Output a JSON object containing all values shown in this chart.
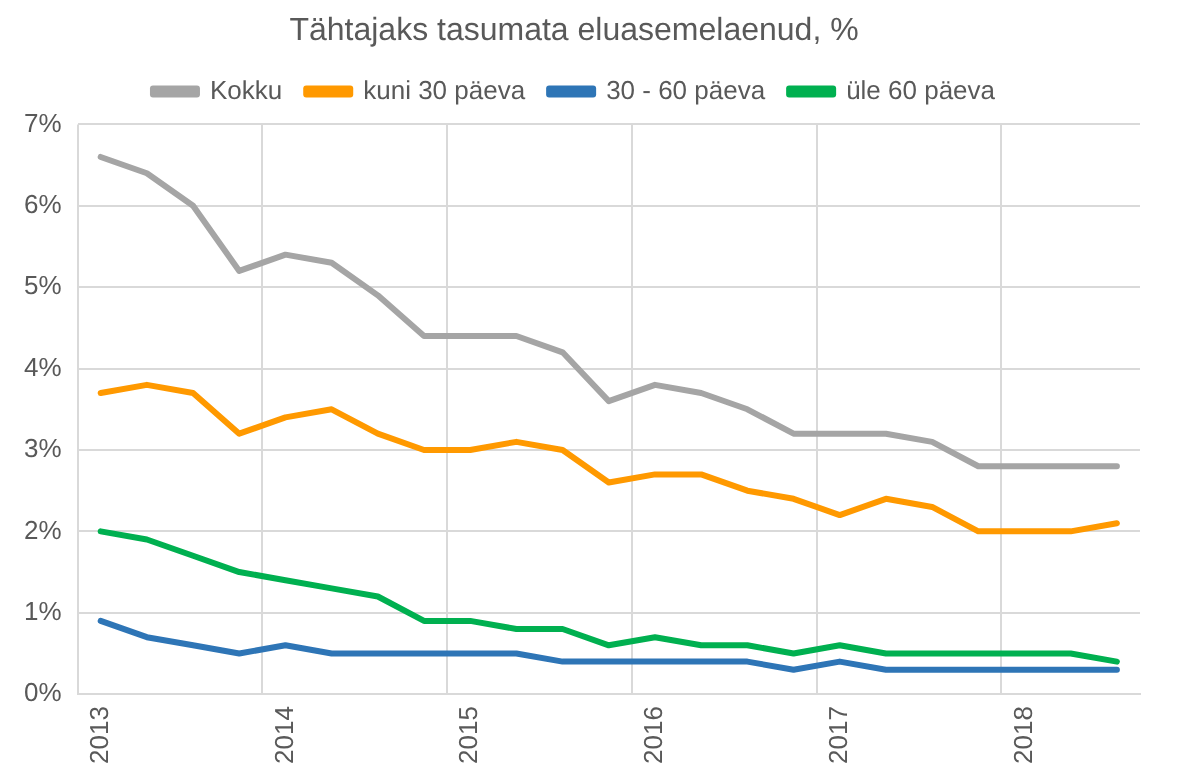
{
  "chart_data": {
    "type": "line",
    "title": "Tähtajaks tasumata eluasemelaenud, %",
    "categories": [
      "2013",
      null,
      null,
      null,
      "2014",
      null,
      null,
      null,
      "2015",
      null,
      null,
      null,
      "2016",
      null,
      null,
      null,
      "2017",
      null,
      null,
      null,
      "2018",
      null,
      null
    ],
    "series": [
      {
        "name": "Kokku",
        "color": "#a5a5a5",
        "values": [
          6.6,
          6.4,
          6.0,
          5.2,
          5.4,
          5.3,
          4.9,
          4.4,
          4.4,
          4.4,
          4.2,
          3.6,
          3.8,
          3.7,
          3.5,
          3.2,
          3.2,
          3.2,
          3.1,
          2.8,
          2.8,
          2.8,
          2.8
        ]
      },
      {
        "name": "kuni 30 päeva",
        "color": "#ff9900",
        "values": [
          3.7,
          3.8,
          3.7,
          3.2,
          3.4,
          3.5,
          3.2,
          3.0,
          3.0,
          3.1,
          3.0,
          2.6,
          2.7,
          2.7,
          2.5,
          2.4,
          2.2,
          2.4,
          2.3,
          2.0,
          2.0,
          2.0,
          2.1
        ]
      },
      {
        "name": "30 - 60 päeva",
        "color": "#2e75b6",
        "values": [
          0.9,
          0.7,
          0.6,
          0.5,
          0.6,
          0.5,
          0.5,
          0.5,
          0.5,
          0.5,
          0.4,
          0.4,
          0.4,
          0.4,
          0.4,
          0.3,
          0.4,
          0.3,
          0.3,
          0.3,
          0.3,
          0.3,
          0.3
        ]
      },
      {
        "name": "üle 60 päeva",
        "color": "#00b050",
        "values": [
          2.0,
          1.9,
          1.7,
          1.5,
          1.4,
          1.3,
          1.2,
          0.9,
          0.9,
          0.8,
          0.8,
          0.6,
          0.7,
          0.6,
          0.6,
          0.5,
          0.6,
          0.5,
          0.5,
          0.5,
          0.5,
          0.5,
          0.4
        ]
      }
    ],
    "ylim": [
      0,
      7
    ],
    "yticks": [
      {
        "value": 0,
        "label": "0%"
      },
      {
        "value": 1,
        "label": "1%"
      },
      {
        "value": 2,
        "label": "2%"
      },
      {
        "value": 3,
        "label": "3%"
      },
      {
        "value": 4,
        "label": "4%"
      },
      {
        "value": 5,
        "label": "5%"
      },
      {
        "value": 6,
        "label": "6%"
      },
      {
        "value": 7,
        "label": "7%"
      }
    ],
    "grid": true,
    "legend": "top",
    "marker": "none",
    "line_style": "solid"
  }
}
